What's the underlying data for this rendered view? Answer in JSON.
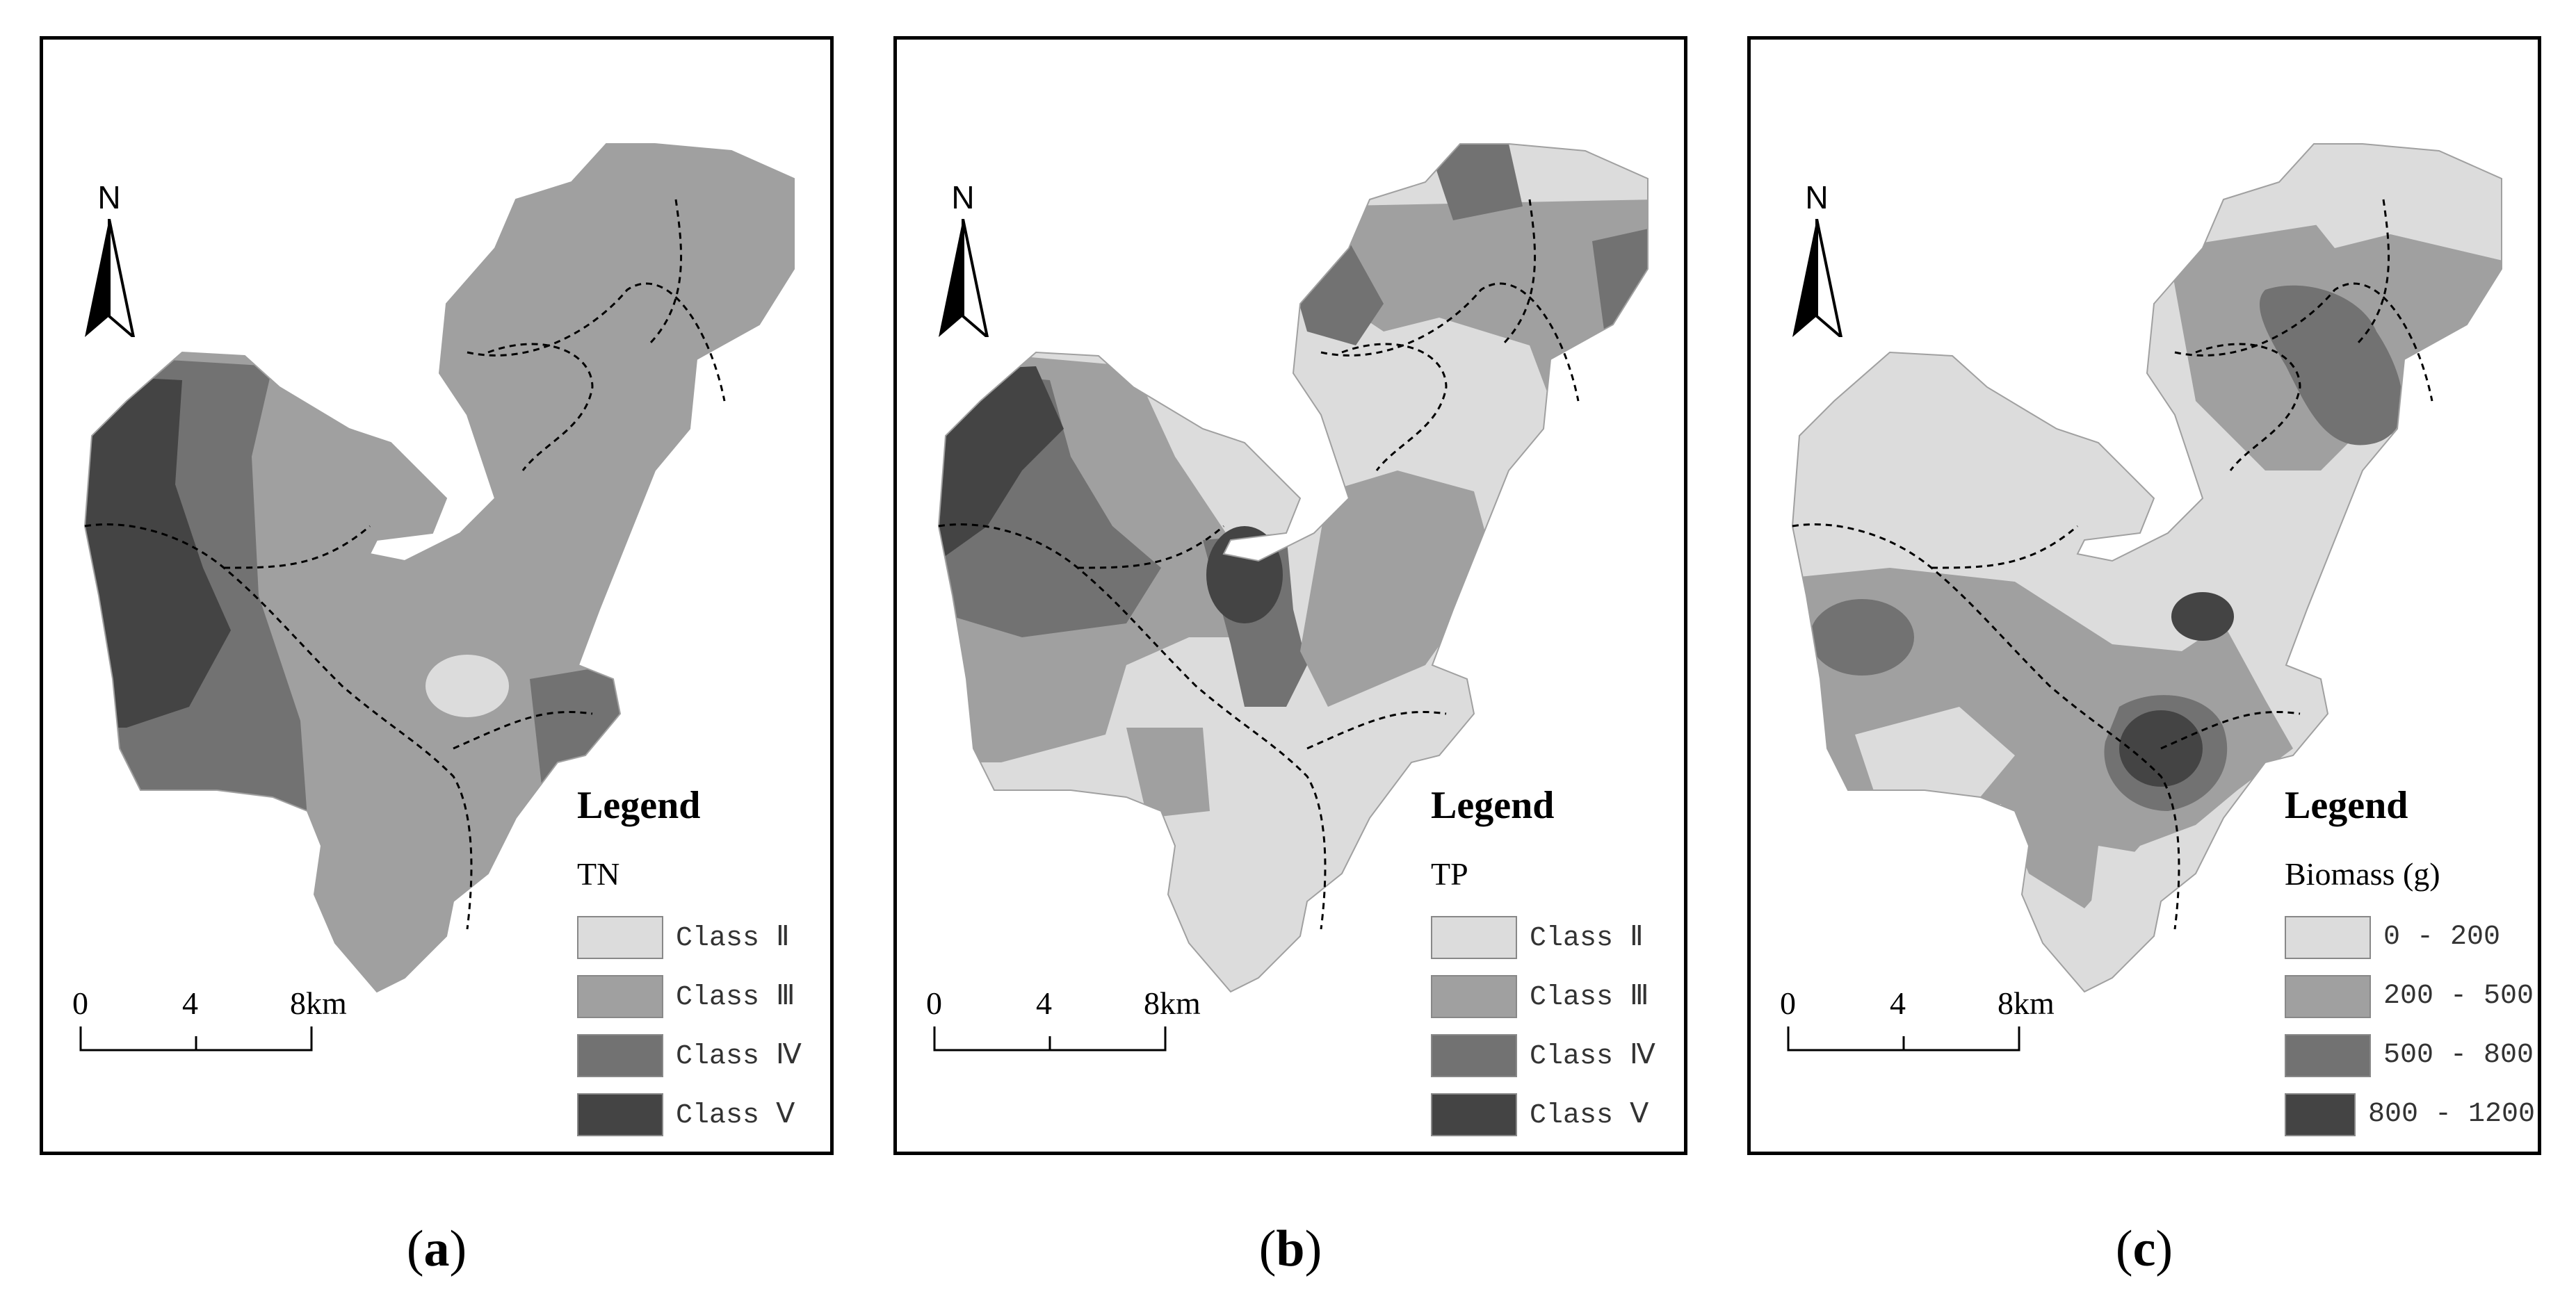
{
  "colors": {
    "class_ii": "#dcdcdc",
    "class_iii": "#a0a0a0",
    "class_iv": "#727272",
    "class_v": "#444444",
    "frame": "#000000",
    "river": "#000000"
  },
  "panels": [
    {
      "id": "a",
      "caption_open": "(",
      "caption_letter": "a",
      "caption_close": ")",
      "north_label": "N",
      "scale": {
        "ticks": [
          "0",
          "4",
          "8km"
        ]
      },
      "legend": {
        "title": "Legend",
        "variable": "TN",
        "items": [
          {
            "label": "Class  Ⅱ",
            "color": "#dcdcdc"
          },
          {
            "label": "Class  Ⅲ",
            "color": "#a0a0a0"
          },
          {
            "label": "Class  Ⅳ",
            "color": "#727272"
          },
          {
            "label": "Class  Ⅴ",
            "color": "#444444"
          }
        ]
      }
    },
    {
      "id": "b",
      "caption_open": "(",
      "caption_letter": "b",
      "caption_close": ")",
      "north_label": "N",
      "scale": {
        "ticks": [
          "0",
          "4",
          "8km"
        ]
      },
      "legend": {
        "title": "Legend",
        "variable": "TP",
        "items": [
          {
            "label": "Class  Ⅱ",
            "color": "#dcdcdc"
          },
          {
            "label": "Class  Ⅲ",
            "color": "#a0a0a0"
          },
          {
            "label": "Class  Ⅳ",
            "color": "#727272"
          },
          {
            "label": "Class  Ⅴ",
            "color": "#444444"
          }
        ]
      }
    },
    {
      "id": "c",
      "caption_open": "(",
      "caption_letter": "c",
      "caption_close": ")",
      "north_label": "N",
      "scale": {
        "ticks": [
          "0",
          "4",
          "8km"
        ]
      },
      "legend": {
        "title": "Legend",
        "variable": "Biomass (g)",
        "items": [
          {
            "label": "0 - 200",
            "color": "#dcdcdc"
          },
          {
            "label": "200 - 500",
            "color": "#a0a0a0"
          },
          {
            "label": "500 - 800",
            "color": "#727272"
          },
          {
            "label": "800 - 1200",
            "color": "#444444"
          }
        ]
      }
    }
  ]
}
